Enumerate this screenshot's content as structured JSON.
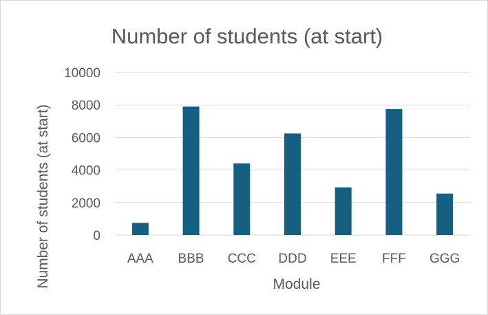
{
  "chart_data": {
    "type": "bar",
    "title": "Number of students (at start)",
    "xlabel": "Module",
    "ylabel": "Number of students (at start)",
    "categories": [
      "AAA",
      "BBB",
      "CCC",
      "DDD",
      "EEE",
      "FFF",
      "GGG"
    ],
    "values": [
      750,
      7900,
      4400,
      6250,
      2930,
      7750,
      2550
    ],
    "ylim": [
      0,
      10000
    ],
    "yticks": [
      0,
      2000,
      4000,
      6000,
      8000,
      10000
    ],
    "grid": true,
    "legend": "none",
    "bar_color": "#156082",
    "grid_color": "#d9d9d9",
    "text_color": "#595959"
  }
}
